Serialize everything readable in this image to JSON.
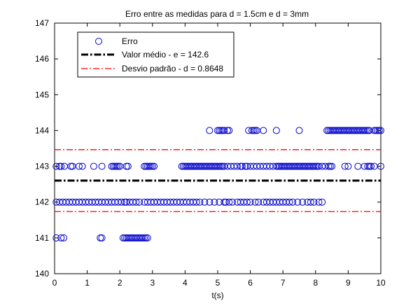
{
  "chart_data": {
    "type": "scatter",
    "title": "Erro entre as medidas para d = 1.5cm e d = 3mm",
    "xlabel": "t(s)",
    "ylabel": "",
    "xlim": [
      0,
      10
    ],
    "ylim": [
      140,
      147
    ],
    "xticks": [
      "0",
      "1",
      "2",
      "3",
      "4",
      "5",
      "6",
      "7",
      "8",
      "9",
      "10"
    ],
    "yticks": [
      "140",
      "141",
      "142",
      "143",
      "144",
      "145",
      "146",
      "147"
    ],
    "grid": false,
    "legend_position": "top-left",
    "series": [
      {
        "name": "Erro",
        "marker": "circle-open",
        "color": "#0000cc",
        "points": [
          {
            "y": 141,
            "x": [
              0.05,
              0.2,
              0.28,
              1.4,
              1.45,
              2.1,
              2.15,
              2.2,
              2.25,
              2.3,
              2.35,
              2.4,
              2.45,
              2.5,
              2.55,
              2.6,
              2.65,
              2.7,
              2.75,
              2.8,
              2.85
            ]
          },
          {
            "y": 142,
            "x": [
              0.05,
              0.15,
              0.25,
              0.35,
              0.45,
              0.55,
              0.65,
              0.75,
              0.85,
              0.95,
              1.05,
              1.15,
              1.25,
              1.35,
              1.45,
              1.55,
              1.65,
              1.75,
              1.85,
              1.95,
              2.05,
              2.15,
              2.2,
              2.3,
              2.4,
              2.5,
              2.6,
              2.75,
              2.85,
              2.95,
              3.05,
              3.15,
              3.25,
              3.35,
              3.45,
              3.55,
              3.65,
              3.75,
              3.85,
              3.95,
              4.05,
              4.15,
              4.25,
              4.35,
              4.45,
              4.6,
              4.75,
              4.9,
              5.05,
              5.2,
              5.25,
              5.35,
              5.45,
              5.6,
              5.7,
              5.8,
              5.9,
              6.0,
              6.15,
              6.25,
              6.4,
              6.5,
              6.6,
              6.7,
              6.8,
              6.9,
              7.0,
              7.1,
              7.2,
              7.3,
              7.45,
              7.6,
              7.75,
              7.85,
              7.95,
              8.1,
              8.2
            ]
          },
          {
            "y": 143,
            "x": [
              0.05,
              0.15,
              0.2,
              0.3,
              0.5,
              0.55,
              0.75,
              0.85,
              1.2,
              1.45,
              1.75,
              1.8,
              1.85,
              1.9,
              1.95,
              2.0,
              2.2,
              2.25,
              2.75,
              2.8,
              2.85,
              2.9,
              2.95,
              3.0,
              3.05,
              3.9,
              3.95,
              4.0,
              4.05,
              4.1,
              4.15,
              4.2,
              4.25,
              4.3,
              4.35,
              4.4,
              4.45,
              4.5,
              4.55,
              4.6,
              4.65,
              4.7,
              4.75,
              4.8,
              4.85,
              4.9,
              4.95,
              5.0,
              5.05,
              5.1,
              5.15,
              5.2,
              5.3,
              5.4,
              5.5,
              5.6,
              5.7,
              5.75,
              5.85,
              5.9,
              6.0,
              6.1,
              6.2,
              6.3,
              6.4,
              6.5,
              6.6,
              6.7,
              6.8,
              6.85,
              6.9,
              6.95,
              7.0,
              7.05,
              7.1,
              7.15,
              7.2,
              7.25,
              7.3,
              7.35,
              7.4,
              7.45,
              7.5,
              7.55,
              7.6,
              7.65,
              7.7,
              7.75,
              7.8,
              7.85,
              7.9,
              7.95,
              8.0,
              8.05,
              8.1,
              8.2,
              8.3,
              8.4,
              8.45,
              8.5,
              8.9,
              9.0,
              9.3,
              9.5,
              9.6,
              9.65,
              9.7,
              9.8,
              10.0
            ]
          },
          {
            "y": 144,
            "x": [
              4.75,
              5.0,
              5.05,
              5.1,
              5.15,
              5.2,
              5.3,
              5.35,
              5.95,
              6.05,
              6.1,
              6.15,
              6.2,
              6.4,
              6.8,
              7.5,
              8.35,
              8.4,
              8.45,
              8.5,
              8.55,
              8.6,
              8.65,
              8.7,
              8.75,
              8.8,
              8.85,
              8.9,
              8.95,
              9.0,
              9.05,
              9.1,
              9.15,
              9.2,
              9.25,
              9.3,
              9.35,
              9.4,
              9.45,
              9.5,
              9.55,
              9.6,
              9.65,
              9.8,
              9.85,
              9.9,
              9.95,
              10.0
            ]
          }
        ]
      },
      {
        "name": "Valor médio - e = 142.6",
        "kind": "hline",
        "y": 142.6,
        "color": "#000000",
        "style": "dashdot-bold"
      },
      {
        "name": "Desvio padrão - d = 0.8648",
        "kind": "hline",
        "y": [
          141.735,
          143.465
        ],
        "color": "#ff0000",
        "style": "dashdot"
      }
    ]
  }
}
